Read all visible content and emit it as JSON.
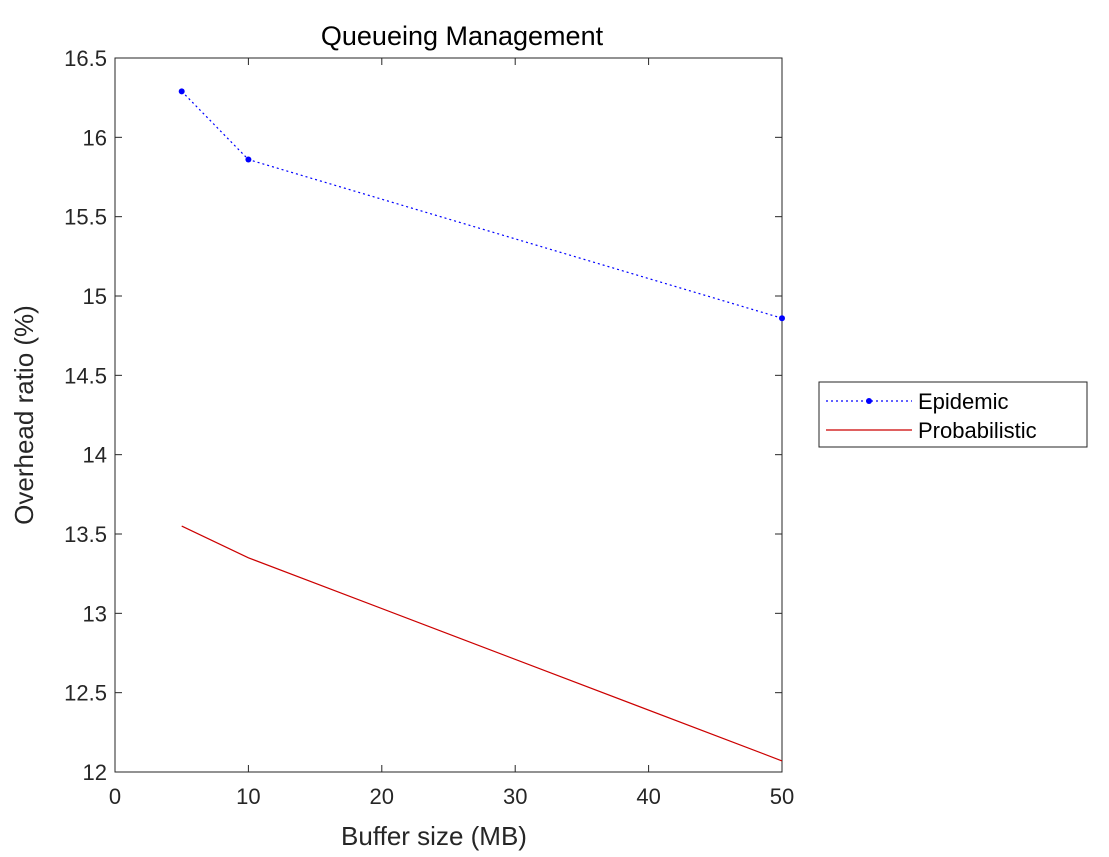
{
  "chart_data": {
    "type": "line",
    "title": "Queueing Management",
    "xlabel": "Buffer size (MB)",
    "ylabel": "Overhead ratio (%)",
    "xlim": [
      0,
      50
    ],
    "ylim": [
      12,
      16.5
    ],
    "xticks": [
      0,
      10,
      20,
      30,
      40,
      50
    ],
    "xtick_labels": [
      "0",
      "10",
      "20",
      "30",
      "40",
      "50"
    ],
    "yticks": [
      12,
      12.5,
      13,
      13.5,
      14,
      14.5,
      15,
      15.5,
      16,
      16.5
    ],
    "ytick_labels": [
      "12",
      "12.5",
      "13",
      "13.5",
      "14",
      "14.5",
      "15",
      "15.5",
      "16",
      "16.5"
    ],
    "grid": false,
    "legend_position": "outside-right",
    "series": [
      {
        "name": "Epidemic",
        "x": [
          5,
          10,
          50
        ],
        "y": [
          16.29,
          15.86,
          14.86
        ],
        "color": "#0000ff",
        "line_style": "dotted",
        "marker": "dot"
      },
      {
        "name": "Probabilistic",
        "x": [
          5,
          10,
          50
        ],
        "y": [
          13.55,
          13.35,
          12.07
        ],
        "color": "#cc0000",
        "line_style": "solid",
        "marker": "none"
      }
    ]
  }
}
